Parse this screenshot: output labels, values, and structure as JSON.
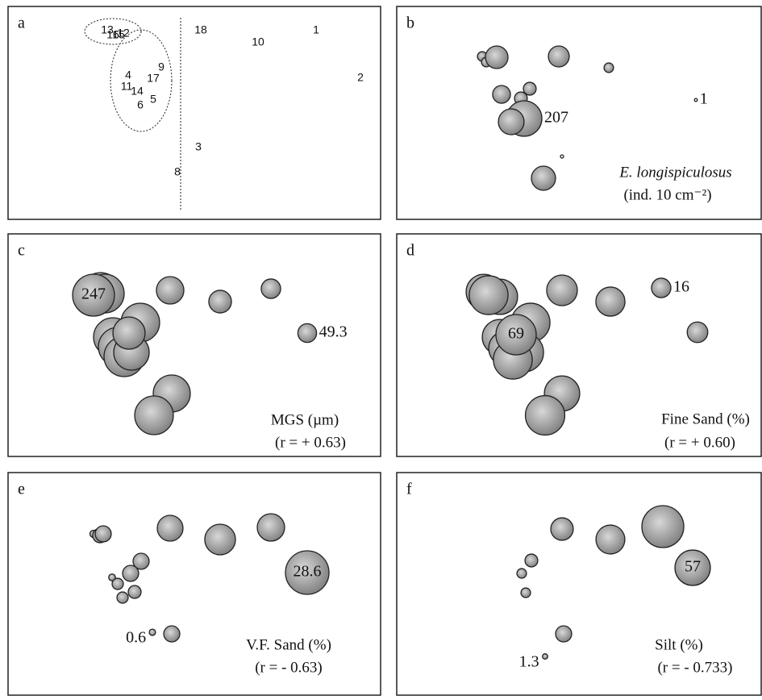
{
  "chart_data": [
    {
      "type": "scatter",
      "panel_label": "a",
      "labels": [
        "1",
        "2",
        "3",
        "4",
        "5",
        "6",
        "8",
        "9",
        "10",
        "11",
        "12",
        "13",
        "14",
        "15",
        "16",
        "17",
        "18"
      ],
      "x": [
        382,
        437,
        236,
        149,
        180,
        164,
        210,
        190,
        310,
        147,
        143,
        123,
        160,
        137,
        130,
        180,
        239
      ],
      "y": [
        240,
        181,
        95,
        184,
        154,
        147,
        64,
        194,
        225,
        170,
        236,
        240,
        164,
        234,
        234,
        180,
        240
      ],
      "xlim": [
        0,
        460
      ],
      "ylim": [
        0,
        270
      ]
    },
    {
      "type": "bubble",
      "panel_label": "b",
      "title": "E. longispiculosus",
      "subtitle": "(ind. 10 cm⁻²)",
      "x": [
        106,
        111,
        119,
        124,
        201,
        263,
        371,
        130,
        165,
        154,
        158,
        142,
        205,
        182
      ],
      "y": [
        208,
        201,
        202,
        207,
        208,
        194,
        154,
        161,
        168,
        156,
        131,
        127,
        84,
        57
      ],
      "values": [
        15,
        15,
        15,
        84,
        72,
        15,
        1,
        52,
        27,
        27,
        207,
        109,
        1.7,
        96
      ],
      "value_labels": [
        null,
        null,
        null,
        null,
        null,
        null,
        "1",
        null,
        null,
        null,
        "207",
        null,
        null,
        null
      ],
      "xlim": [
        0,
        460
      ],
      "ylim": [
        0,
        270
      ]
    },
    {
      "type": "bubble",
      "panel_label": "c",
      "title": "MGS  (µm)",
      "subtitle": "(r = + 0.63)",
      "x": [
        115,
        120,
        201,
        263,
        326,
        371,
        164,
        130,
        136,
        144,
        153,
        150,
        203,
        181,
        106
      ],
      "y": [
        198,
        196,
        200,
        186,
        202,
        147,
        160,
        142,
        130,
        118,
        123,
        147,
        72,
        45,
        194
      ],
      "values": [
        210,
        210,
        106,
        72,
        53,
        49.3,
        210,
        210,
        210,
        228,
        177,
        146,
        193,
        210,
        247
      ],
      "value_labels": [
        null,
        null,
        null,
        null,
        null,
        "49.3",
        null,
        null,
        null,
        null,
        null,
        null,
        null,
        null,
        "247"
      ],
      "xlim": [
        0,
        460
      ],
      "ylim": [
        0,
        270
      ]
    },
    {
      "type": "bubble",
      "panel_label": "d",
      "title": "Fine Sand (%)",
      "subtitle": "(r = + 0.60)",
      "x": [
        108,
        128,
        205,
        265,
        328,
        373,
        166,
        128,
        136,
        158,
        144,
        205,
        184,
        114,
        148
      ],
      "y": [
        198,
        192,
        200,
        186,
        203,
        148,
        160,
        142,
        128,
        123,
        114,
        72,
        45,
        194,
        145
      ],
      "values": [
        53,
        53,
        40,
        36,
        16,
        18,
        64,
        53,
        53,
        64,
        64,
        53,
        66,
        64,
        69
      ],
      "value_labels": [
        null,
        null,
        null,
        null,
        "16",
        null,
        null,
        null,
        null,
        null,
        null,
        null,
        null,
        null,
        "69"
      ],
      "xlim": [
        0,
        460
      ],
      "ylim": [
        0,
        270
      ]
    },
    {
      "type": "bubble",
      "panel_label": "e",
      "title": "V.F. Sand (%)",
      "subtitle": "(r = - 0.63)",
      "x": [
        106,
        114,
        118,
        201,
        263,
        326,
        371,
        165,
        152,
        129,
        136,
        157,
        142,
        203,
        179
      ],
      "y": [
        194,
        192,
        194,
        201,
        187,
        202,
        146,
        160,
        145,
        140,
        132,
        122,
        115,
        70,
        72
      ],
      "values": [
        0.8,
        3.2,
        3.9,
        10.0,
        14.2,
        11.3,
        28.6,
        3.9,
        3.9,
        0.7,
        1.9,
        2.5,
        1.9,
        3.9,
        0.6
      ],
      "value_labels": [
        null,
        null,
        null,
        null,
        null,
        null,
        "28.6",
        null,
        null,
        null,
        null,
        null,
        null,
        null,
        "0.6"
      ],
      "xlim": [
        0,
        460
      ],
      "ylim": [
        0,
        270
      ]
    },
    {
      "type": "bubble",
      "panel_label": "f",
      "title": "Silt (%)",
      "subtitle": "(r = - 0.733)",
      "x": [
        205,
        265,
        330,
        367,
        167,
        155,
        160,
        207,
        184
      ],
      "y": [
        200,
        187,
        203,
        152,
        161,
        145,
        121,
        70,
        42
      ],
      "values": [
        23,
        38,
        80,
        57,
        7.5,
        4.2,
        4.2,
        11.8,
        1.3
      ],
      "value_labels": [
        null,
        null,
        null,
        "57",
        null,
        null,
        null,
        null,
        "1.3"
      ],
      "xlim": [
        0,
        460
      ],
      "ylim": [
        0,
        270
      ]
    }
  ]
}
